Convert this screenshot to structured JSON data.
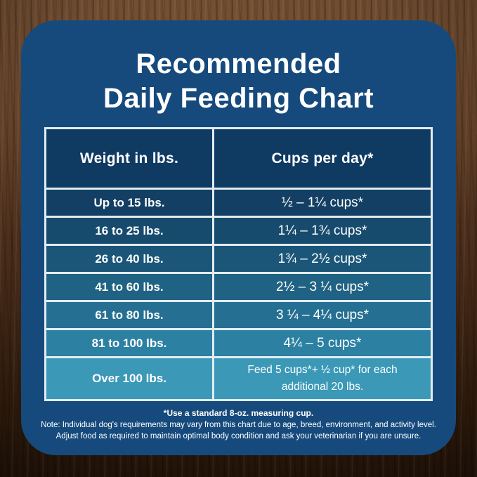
{
  "title": {
    "line1": "Recommended",
    "line2": "Daily Feeding Chart"
  },
  "table": {
    "headers": [
      "Weight in lbs.",
      "Cups per day*"
    ],
    "rows": [
      {
        "weight": "Up to 15 lbs.",
        "cups": "½ – 1¼ cups*"
      },
      {
        "weight": "16 to 25 lbs.",
        "cups": "1¼ – 1¾  cups*"
      },
      {
        "weight": "26 to 40 lbs.",
        "cups": "1¾ – 2½ cups*"
      },
      {
        "weight": "41 to 60 lbs.",
        "cups": "2½ – 3 ¼ cups*"
      },
      {
        "weight": "61 to 80 lbs.",
        "cups": "3 ¼ – 4¼ cups*"
      },
      {
        "weight": "81 to 100 lbs.",
        "cups": "4¼ – 5 cups*"
      },
      {
        "weight": "Over 100 lbs.",
        "cups": "Feed 5 cups*+ ½ cup* for each additional 20 lbs."
      }
    ],
    "row_colors": [
      "#123f63",
      "#174b6e",
      "#1b5678",
      "#206283",
      "#257092",
      "#2c80a2",
      "#3b99b7"
    ],
    "header_color": "#0f3a62",
    "border_color": "#e3ecf1"
  },
  "notes": {
    "line1": "*Use a standard 8-oz. measuring cup.",
    "line2": "Note: Individual dog's requirements may vary from this chart due to age, breed, environment, and activity level.",
    "line3": "Adjust food as required to maintain optimal body condition and ask your veterinarian if you are unsure."
  },
  "colors": {
    "panel_background": "#164a7d",
    "text": "#ffffff",
    "wood_light": "#66452c",
    "wood_dark": "#221308"
  },
  "chart_data": {
    "type": "table",
    "title": "Recommended Daily Feeding Chart",
    "columns": [
      "Weight in lbs.",
      "Cups per day*"
    ],
    "rows": [
      [
        "Up to 15 lbs.",
        "½ – 1¼ cups*"
      ],
      [
        "16 to 25 lbs.",
        "1¼ – 1¾ cups*"
      ],
      [
        "26 to 40 lbs.",
        "1¾ – 2½ cups*"
      ],
      [
        "41 to 60 lbs.",
        "2½ – 3¼ cups*"
      ],
      [
        "61 to 80 lbs.",
        "3¼ – 4¼ cups*"
      ],
      [
        "81 to 100 lbs.",
        "4¼ – 5 cups*"
      ],
      [
        "Over 100 lbs.",
        "Feed 5 cups* + ½ cup* for each additional 20 lbs."
      ]
    ],
    "notes": [
      "*Use a standard 8-oz. measuring cup.",
      "Note: Individual dog's requirements may vary from this chart due to age, breed, environment, and activity level.",
      "Adjust food as required to maintain optimal body condition and ask your veterinarian if you are unsure."
    ]
  }
}
